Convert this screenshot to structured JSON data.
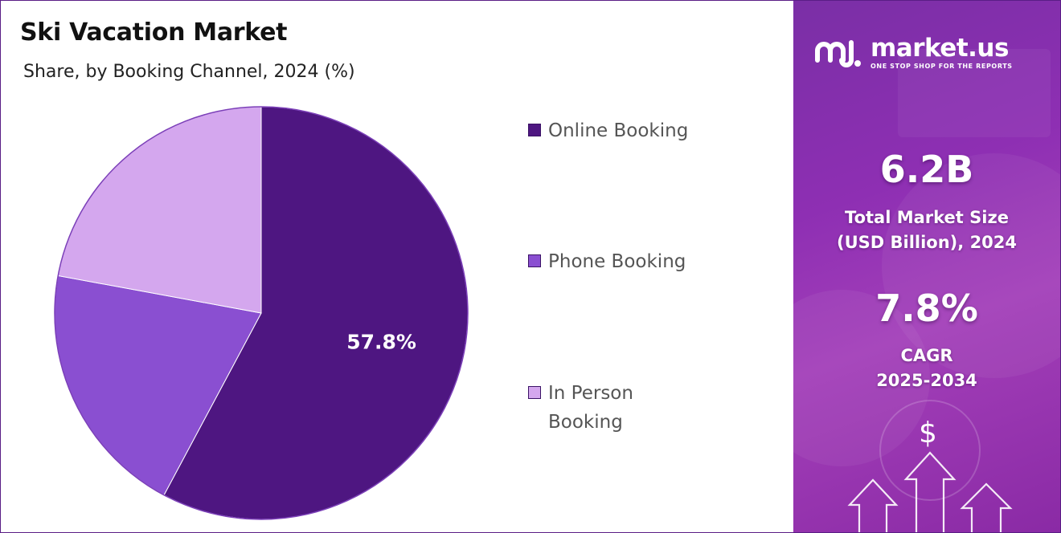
{
  "chart_data": {
    "type": "pie",
    "title": "Ski Vacation Market",
    "subtitle": "Share, by Booking Channel, 2024 (%)",
    "categories": [
      "Online Booking",
      "Phone Booking",
      "In Person Booking"
    ],
    "values": [
      57.8,
      20.1,
      22.1
    ],
    "data_labels": [
      "57.8%",
      "",
      ""
    ],
    "colors": [
      "#4e1681",
      "#8a4fd1",
      "#d4a7ee"
    ],
    "legend_position": "right"
  },
  "legend": {
    "items": [
      {
        "label": "Online Booking",
        "color": "#4e1681"
      },
      {
        "label": "Phone Booking",
        "color": "#8a4fd1"
      },
      {
        "label": "In Person Booking",
        "color": "#d4a7ee"
      }
    ]
  },
  "brand": {
    "name": "market.us",
    "tagline": "ONE STOP SHOP FOR THE REPORTS",
    "icon": "market-us-logo-icon"
  },
  "stats": {
    "market_size_value": "6.2B",
    "market_size_label_line1": "Total Market Size",
    "market_size_label_line2": "(USD Billion), 2024",
    "cagr_value": "7.8%",
    "cagr_label_line1": "CAGR",
    "cagr_label_line2": "2025-2034"
  },
  "decor": {
    "dollar_symbol": "$",
    "icon": "growth-arrows-icon"
  }
}
